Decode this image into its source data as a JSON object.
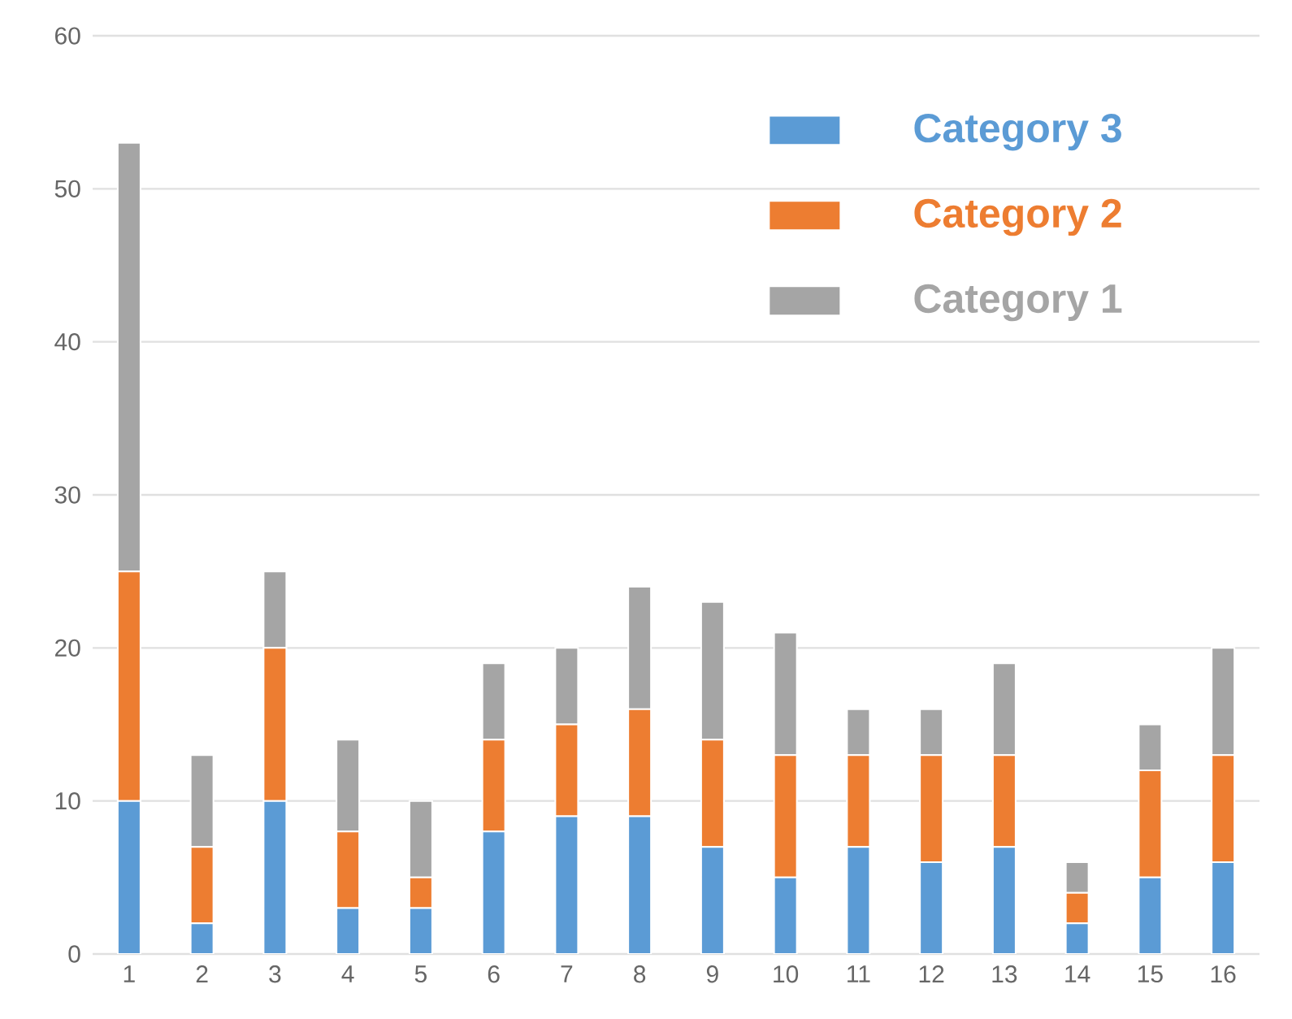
{
  "chart_data": {
    "type": "bar",
    "stacked": true,
    "categories": [
      "1",
      "2",
      "3",
      "4",
      "5",
      "6",
      "7",
      "8",
      "9",
      "10",
      "11",
      "12",
      "13",
      "14",
      "15",
      "16"
    ],
    "series": [
      {
        "name": "Category 3",
        "color": "#5b9bd5",
        "values": [
          10,
          2,
          10,
          3,
          3,
          8,
          9,
          9,
          7,
          5,
          7,
          6,
          7,
          2,
          5,
          6
        ]
      },
      {
        "name": "Category 2",
        "color": "#ed7d31",
        "values": [
          15,
          5,
          10,
          5,
          2,
          6,
          6,
          7,
          7,
          8,
          6,
          7,
          6,
          2,
          7,
          7
        ]
      },
      {
        "name": "Category 1",
        "color": "#a5a5a5",
        "values": [
          28,
          6,
          5,
          6,
          5,
          5,
          5,
          8,
          9,
          8,
          3,
          3,
          6,
          2,
          3,
          7
        ]
      }
    ],
    "ylim": [
      0,
      60
    ],
    "yticks": [
      0,
      10,
      20,
      30,
      40,
      50,
      60
    ],
    "grid": "y",
    "legend": "top right"
  }
}
